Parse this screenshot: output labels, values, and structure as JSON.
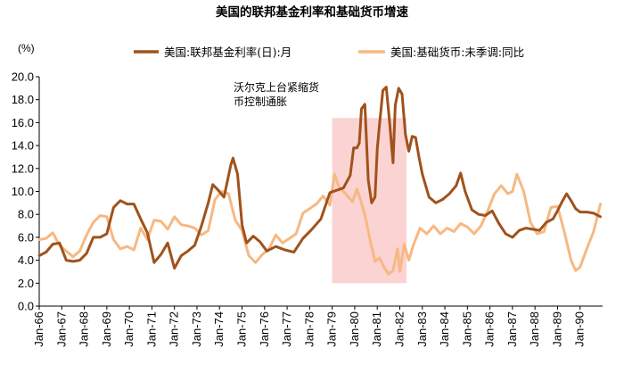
{
  "chart_data": {
    "type": "line",
    "title": "美国的联邦基金利率和基础货币增速",
    "unit_label": "(%)",
    "ylim": [
      0.0,
      20.0
    ],
    "yticks": [
      0.0,
      2.0,
      4.0,
      6.0,
      8.0,
      10.0,
      12.0,
      14.0,
      16.0,
      18.0,
      20.0
    ],
    "ytick_labels": [
      "0.0",
      "2.0",
      "4.0",
      "6.0",
      "8.0",
      "10.0",
      "12.0",
      "14.0",
      "16.0",
      "18.0",
      "20.0"
    ],
    "xlim": [
      1966.0,
      1991.0
    ],
    "xtick_labels": [
      "Jan-66",
      "Jan-67",
      "Jan-68",
      "Jan-69",
      "Jan-70",
      "Jan-71",
      "Jan-72",
      "Jan-73",
      "Jan-74",
      "Jan-75",
      "Jan-76",
      "Jan-77",
      "Jan-78",
      "Jan-79",
      "Jan-80",
      "Jan-81",
      "Jan-82",
      "Jan-83",
      "Jan-84",
      "Jan-85",
      "Jan-86",
      "Jan-87",
      "Jan-88",
      "Jan-89",
      "Jan-90"
    ],
    "grid": false,
    "legend_position": "top",
    "annotation": {
      "text_lines": [
        "沃尔克上台紧缩货",
        "币控制通胀"
      ],
      "shaded_x": [
        1979.0,
        1982.3
      ],
      "color": "#fbd3d3"
    },
    "series": [
      {
        "name": "美国:联邦基金利率(日):月",
        "color": "#a0521c",
        "x": [
          1966.0,
          1966.3,
          1966.6,
          1966.9,
          1967.2,
          1967.5,
          1967.8,
          1968.1,
          1968.4,
          1968.7,
          1969.0,
          1969.3,
          1969.6,
          1969.9,
          1970.2,
          1970.5,
          1970.8,
          1971.1,
          1971.4,
          1971.7,
          1972.0,
          1972.3,
          1972.6,
          1972.9,
          1973.2,
          1973.5,
          1973.7,
          1973.9,
          1974.2,
          1974.5,
          1974.6,
          1974.8,
          1975.0,
          1975.2,
          1975.5,
          1975.8,
          1976.1,
          1976.5,
          1976.9,
          1977.3,
          1977.7,
          1978.1,
          1978.5,
          1978.9,
          1979.2,
          1979.5,
          1979.8,
          1979.95,
          1980.1,
          1980.2,
          1980.3,
          1980.45,
          1980.6,
          1980.75,
          1980.9,
          1981.0,
          1981.1,
          1981.25,
          1981.4,
          1981.55,
          1981.7,
          1981.8,
          1981.95,
          1982.1,
          1982.25,
          1982.4,
          1982.55,
          1982.7,
          1982.85,
          1983.0,
          1983.3,
          1983.6,
          1983.9,
          1984.2,
          1984.5,
          1984.7,
          1984.9,
          1985.2,
          1985.5,
          1985.8,
          1986.1,
          1986.4,
          1986.7,
          1987.0,
          1987.3,
          1987.6,
          1987.9,
          1988.2,
          1988.5,
          1988.8,
          1989.0,
          1989.2,
          1989.4,
          1989.6,
          1989.8,
          1990.0,
          1990.3,
          1990.6,
          1990.9
        ],
        "values": [
          4.4,
          4.7,
          5.4,
          5.5,
          4.0,
          3.9,
          4.0,
          4.6,
          6.0,
          6.0,
          6.3,
          8.6,
          9.2,
          8.9,
          8.9,
          7.6,
          6.4,
          3.8,
          4.5,
          5.5,
          3.3,
          4.4,
          4.8,
          5.3,
          7.0,
          9.0,
          10.6,
          10.2,
          9.5,
          12.3,
          12.9,
          11.5,
          7.1,
          5.5,
          6.1,
          5.6,
          4.8,
          5.2,
          4.9,
          4.7,
          5.9,
          6.7,
          7.6,
          9.9,
          10.1,
          10.3,
          11.4,
          13.8,
          13.8,
          14.2,
          17.2,
          17.6,
          11.0,
          9.0,
          9.5,
          13.7,
          15.8,
          18.8,
          19.1,
          16.0,
          12.5,
          17.5,
          19.0,
          18.5,
          15.0,
          13.5,
          14.8,
          14.7,
          13.0,
          11.5,
          9.5,
          9.0,
          9.3,
          9.8,
          10.5,
          11.6,
          10.0,
          8.4,
          8.0,
          7.9,
          8.3,
          7.2,
          6.3,
          6.0,
          6.6,
          6.8,
          6.7,
          6.6,
          7.3,
          7.6,
          8.3,
          9.1,
          9.8,
          9.2,
          8.5,
          8.2,
          8.2,
          8.1,
          7.8
        ]
      },
      {
        "name": "美国:基础货币:未季调:同比",
        "color": "#f7b882",
        "x": [
          1966.0,
          1966.3,
          1966.6,
          1966.9,
          1967.2,
          1967.5,
          1967.8,
          1968.1,
          1968.4,
          1968.7,
          1969.0,
          1969.3,
          1969.6,
          1969.9,
          1970.2,
          1970.5,
          1970.8,
          1971.1,
          1971.4,
          1971.7,
          1972.0,
          1972.3,
          1972.6,
          1972.9,
          1973.2,
          1973.5,
          1973.8,
          1974.1,
          1974.4,
          1974.7,
          1975.0,
          1975.3,
          1975.6,
          1975.9,
          1976.2,
          1976.5,
          1976.8,
          1977.1,
          1977.4,
          1977.7,
          1978.0,
          1978.3,
          1978.6,
          1978.9,
          1979.1,
          1979.3,
          1979.6,
          1979.9,
          1980.1,
          1980.3,
          1980.5,
          1980.7,
          1980.9,
          1981.1,
          1981.3,
          1981.5,
          1981.7,
          1981.9,
          1982.0,
          1982.2,
          1982.4,
          1982.6,
          1982.9,
          1983.2,
          1983.5,
          1983.8,
          1984.1,
          1984.4,
          1984.7,
          1985.0,
          1985.3,
          1985.6,
          1985.9,
          1986.2,
          1986.5,
          1986.8,
          1987.0,
          1987.2,
          1987.5,
          1987.8,
          1988.1,
          1988.4,
          1988.7,
          1989.0,
          1989.3,
          1989.6,
          1989.8,
          1990.0,
          1990.3,
          1990.6,
          1990.9
        ],
        "values": [
          5.8,
          5.9,
          6.4,
          5.3,
          4.8,
          4.3,
          4.8,
          6.2,
          7.3,
          7.9,
          7.8,
          5.8,
          5.0,
          5.2,
          4.9,
          6.8,
          5.8,
          7.5,
          7.4,
          6.7,
          7.8,
          7.1,
          7.0,
          6.8,
          6.2,
          6.6,
          9.3,
          10.0,
          9.8,
          7.5,
          6.6,
          4.4,
          3.8,
          4.5,
          5.0,
          6.2,
          5.5,
          5.9,
          6.3,
          8.1,
          8.5,
          8.9,
          9.6,
          8.8,
          11.5,
          10.4,
          9.8,
          9.1,
          10.2,
          9.0,
          7.5,
          5.6,
          3.9,
          4.2,
          3.4,
          2.8,
          3.1,
          5.0,
          3.0,
          5.4,
          4.0,
          5.3,
          6.8,
          6.3,
          7.0,
          6.3,
          6.8,
          6.5,
          7.2,
          6.9,
          6.3,
          7.0,
          8.3,
          9.8,
          10.5,
          9.8,
          10.0,
          11.5,
          10.0,
          7.3,
          6.3,
          6.5,
          8.6,
          8.7,
          6.5,
          4.0,
          3.1,
          3.4,
          5.0,
          6.5,
          8.9
        ]
      }
    ]
  }
}
